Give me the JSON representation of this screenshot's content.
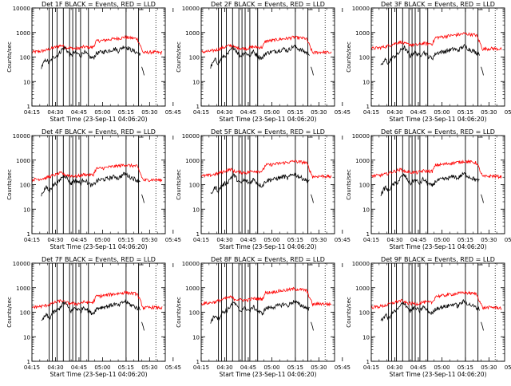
{
  "chart_data": [
    {
      "type": "line",
      "title": "Det 1F BLACK = Events, RED = LLD",
      "xlabel": "Start Time (23-Sep-11 04:06:20)",
      "ylabel": "Counts/sec",
      "low": true
    },
    {
      "type": "line",
      "title": "Det 2F BLACK = Events, RED = LLD",
      "xlabel": "Start Time (23-Sep-11 04:06:20)",
      "ylabel": "Counts/sec",
      "low": true
    },
    {
      "type": "line",
      "title": "Det 3F BLACK = Events, RED = LLD",
      "xlabel": "Start Time (23-Sep-11 04:06:20)",
      "ylabel": "Counts/sec",
      "low": false
    },
    {
      "type": "line",
      "title": "Det 4F BLACK = Events, RED = LLD",
      "xlabel": "Start Time (23-Sep-11 04:06:20)",
      "ylabel": "Counts/sec",
      "low": true
    },
    {
      "type": "line",
      "title": "Det 5F BLACK = Events, RED = LLD",
      "xlabel": "Start Time (23-Sep-11 04:06:20)",
      "ylabel": "Counts/sec",
      "low": false
    },
    {
      "type": "line",
      "title": "Det 6F BLACK = Events, RED = LLD",
      "xlabel": "Start Time (23-Sep-11 04:06:20)",
      "ylabel": "Counts/sec",
      "low": false
    },
    {
      "type": "line",
      "title": "Det 7F BLACK = Events, RED = LLD",
      "xlabel": "Start Time (23-Sep-11 04:06:20)",
      "ylabel": "Counts/sec",
      "low": true
    },
    {
      "type": "line",
      "title": "Det 8F BLACK = Events, RED = LLD",
      "xlabel": "Start Time (23-Sep-11 04:06:20)",
      "ylabel": "Counts/sec",
      "low": false
    },
    {
      "type": "line",
      "title": "Det 9F BLACK = Events, RED = LLD",
      "xlabel": "Start Time (23-Sep-11 04:06:20)",
      "ylabel": "Counts/sec",
      "low": true
    }
  ],
  "shared": {
    "x_ticks": [
      "04:15",
      "04:30",
      "04:45",
      "05:00",
      "05:15",
      "05:30",
      "05:45"
    ],
    "y_ticks": [
      "1",
      "10",
      "100",
      "1000",
      "10000"
    ],
    "y_scale": "log",
    "ylim": [
      1,
      10000
    ],
    "xlim_minutes": [
      9,
      94
    ],
    "series": [
      {
        "name": "Events",
        "color": "#000000"
      },
      {
        "name": "LLD",
        "color": "#ff0000"
      }
    ],
    "vertical_markers_minutes": [
      20,
      22,
      25,
      29,
      33,
      35,
      37,
      40,
      45,
      69,
      77
    ],
    "black_profile": [
      [
        15,
        40
      ],
      [
        18,
        80
      ],
      [
        20,
        55
      ],
      [
        22,
        90
      ],
      [
        24,
        110
      ],
      [
        26,
        130
      ],
      [
        28,
        200
      ],
      [
        30,
        250
      ],
      [
        32,
        160
      ],
      [
        34,
        110
      ],
      [
        36,
        150
      ],
      [
        38,
        140
      ],
      [
        40,
        110
      ],
      [
        42,
        170
      ],
      [
        44,
        130
      ],
      [
        46,
        100
      ],
      [
        48,
        90
      ],
      [
        50,
        140
      ],
      [
        53,
        160
      ],
      [
        56,
        170
      ],
      [
        60,
        200
      ],
      [
        62,
        220
      ],
      [
        64,
        180
      ],
      [
        66,
        230
      ],
      [
        68,
        280
      ],
      [
        70,
        240
      ],
      [
        72,
        200
      ],
      [
        74,
        180
      ],
      [
        76,
        150
      ],
      [
        78,
        140
      ]
    ],
    "red_profile": [
      [
        9,
        160
      ],
      [
        14,
        170
      ],
      [
        18,
        190
      ],
      [
        22,
        230
      ],
      [
        26,
        280
      ],
      [
        28,
        300
      ],
      [
        30,
        250
      ],
      [
        34,
        230
      ],
      [
        38,
        220
      ],
      [
        42,
        260
      ],
      [
        46,
        250
      ],
      [
        48,
        250
      ],
      [
        50,
        450
      ],
      [
        54,
        470
      ],
      [
        58,
        520
      ],
      [
        62,
        560
      ],
      [
        66,
        600
      ],
      [
        68,
        650
      ],
      [
        70,
        620
      ],
      [
        72,
        600
      ],
      [
        74,
        580
      ],
      [
        76,
        560
      ],
      [
        77,
        420
      ],
      [
        80,
        150
      ],
      [
        86,
        160
      ],
      [
        92,
        150
      ]
    ]
  }
}
